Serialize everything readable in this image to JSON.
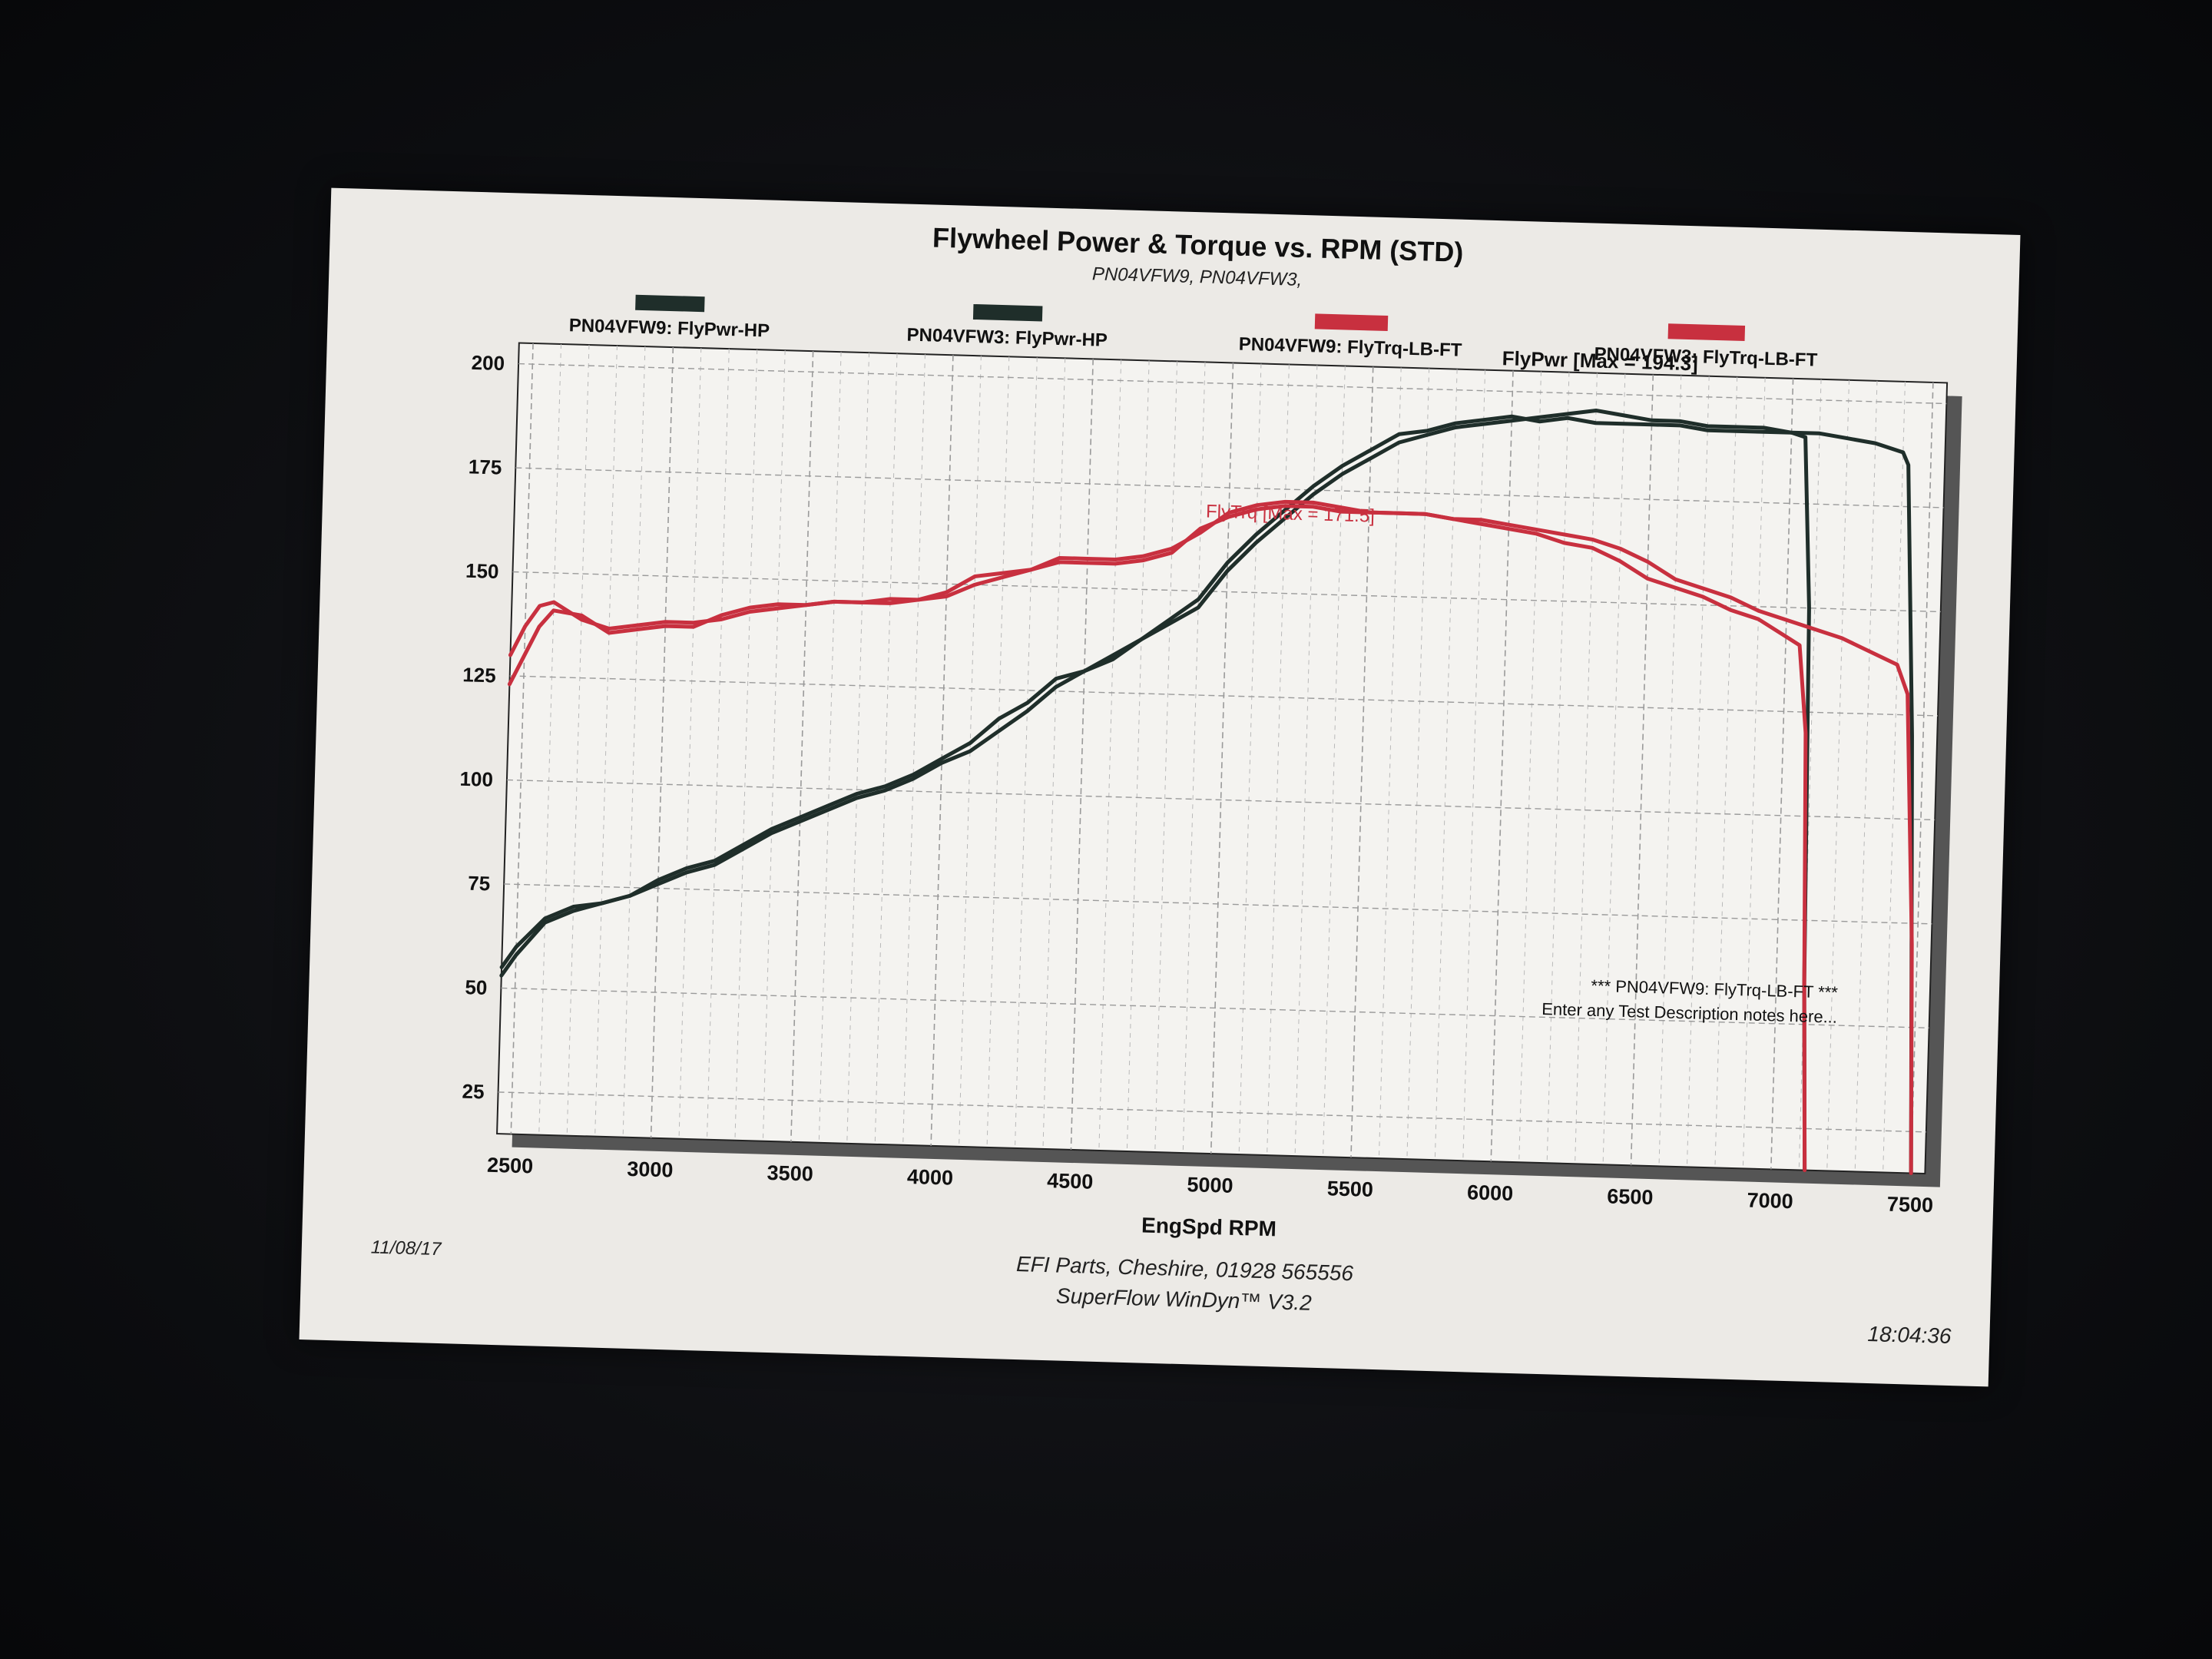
{
  "chart_data": {
    "type": "line",
    "title": "Flywheel Power & Torque vs. RPM (STD)",
    "subtitle": "PN04VFW9, PN04VFW3,",
    "xlabel": "EngSpd RPM",
    "xlim": [
      2450,
      7550
    ],
    "ylim": [
      15,
      205
    ],
    "x_ticks": [
      2500,
      3000,
      3500,
      4000,
      4500,
      5000,
      5500,
      6000,
      6500,
      7000,
      7500
    ],
    "y_ticks": [
      25,
      50,
      75,
      100,
      125,
      150,
      175,
      200
    ],
    "grid": true,
    "legend_position": "top",
    "series": [
      {
        "name": "PN04VFW9: FlyPwr-HP",
        "color": "#1f2e2a",
        "x": [
          2450,
          2500,
          2600,
          2700,
          2800,
          2900,
          3000,
          3100,
          3200,
          3300,
          3400,
          3500,
          3600,
          3700,
          3800,
          3900,
          4000,
          4100,
          4200,
          4300,
          4400,
          4500,
          4600,
          4700,
          4800,
          4900,
          5000,
          5100,
          5200,
          5300,
          5400,
          5500,
          5600,
          5700,
          5800,
          5900,
          6000,
          6100,
          6200,
          6300,
          6400,
          6500,
          6600,
          6700,
          6800,
          6900,
          7000,
          7050,
          7080,
          7100,
          7120
        ],
        "y": [
          55,
          60,
          67,
          70,
          71,
          73,
          77,
          80,
          82,
          86,
          90,
          93,
          96,
          99,
          101,
          104,
          108,
          112,
          118,
          122,
          128,
          130,
          133,
          138,
          143,
          148,
          157,
          164,
          170,
          176,
          181,
          185,
          189,
          190,
          192,
          193,
          194,
          193,
          194,
          193,
          193,
          193,
          193,
          192,
          192,
          192,
          192,
          191,
          150,
          60,
          15
        ]
      },
      {
        "name": "PN04VFW3: FlyPwr-HP",
        "color": "#1f2e2a",
        "x": [
          2450,
          2500,
          2600,
          2700,
          2800,
          2900,
          3000,
          3100,
          3200,
          3300,
          3400,
          3500,
          3600,
          3700,
          3800,
          3900,
          4000,
          4100,
          4200,
          4300,
          4400,
          4500,
          4600,
          4700,
          4800,
          4900,
          5000,
          5100,
          5200,
          5300,
          5400,
          5500,
          5600,
          5700,
          5800,
          5900,
          6000,
          6100,
          6200,
          6300,
          6400,
          6500,
          6600,
          6700,
          6800,
          6900,
          7000,
          7100,
          7200,
          7300,
          7400,
          7420,
          7460,
          7500
        ],
        "y": [
          53,
          58,
          66,
          69,
          71,
          73,
          76,
          79,
          81,
          85,
          89,
          92,
          95,
          98,
          100,
          103,
          107,
          110,
          115,
          120,
          126,
          130,
          134,
          138,
          142,
          146,
          155,
          162,
          168,
          174,
          179,
          183,
          187,
          189,
          191,
          192,
          193,
          194,
          195,
          196,
          195,
          194,
          194,
          193,
          193,
          193,
          192,
          192,
          191,
          190,
          188,
          185,
          120,
          15
        ]
      },
      {
        "name": "PN04VFW9: FlyTrq-LB-FT",
        "color": "#c8303f",
        "x": [
          2450,
          2500,
          2550,
          2600,
          2700,
          2800,
          2900,
          3000,
          3100,
          3200,
          3300,
          3400,
          3500,
          3600,
          3700,
          3800,
          3900,
          4000,
          4100,
          4200,
          4300,
          4400,
          4500,
          4600,
          4700,
          4800,
          4900,
          5000,
          5100,
          5200,
          5300,
          5400,
          5500,
          5600,
          5700,
          5800,
          5900,
          6000,
          6100,
          6200,
          6300,
          6400,
          6500,
          6600,
          6700,
          6800,
          6900,
          7000,
          7050,
          7080,
          7100,
          7120
        ],
        "y": [
          130,
          137,
          142,
          143,
          139,
          137,
          138,
          139,
          139,
          140,
          142,
          143,
          144,
          145,
          145,
          146,
          146,
          147,
          150,
          152,
          154,
          156,
          156,
          156,
          157,
          159,
          165,
          168,
          170,
          171,
          171,
          170,
          170,
          170,
          170,
          169,
          168,
          167,
          166,
          164,
          163,
          160,
          156,
          154,
          152,
          149,
          147,
          143,
          141,
          120,
          60,
          15
        ]
      },
      {
        "name": "PN04VFW3: FlyTrq-LB-FT",
        "color": "#c8303f",
        "x": [
          2450,
          2500,
          2550,
          2600,
          2700,
          2800,
          2900,
          3000,
          3100,
          3200,
          3300,
          3400,
          3500,
          3600,
          3700,
          3800,
          3900,
          4000,
          4100,
          4200,
          4300,
          4400,
          4500,
          4600,
          4700,
          4800,
          4900,
          5000,
          5100,
          5200,
          5300,
          5400,
          5500,
          5600,
          5700,
          5800,
          5900,
          6000,
          6100,
          6200,
          6300,
          6400,
          6500,
          6600,
          6700,
          6800,
          6900,
          7000,
          7100,
          7200,
          7300,
          7400,
          7440,
          7480,
          7500
        ],
        "y": [
          123,
          130,
          137,
          141,
          140,
          136,
          137,
          138,
          138,
          141,
          143,
          144,
          144,
          145,
          145,
          145,
          146,
          148,
          152,
          153,
          154,
          157,
          157,
          157,
          158,
          160,
          164,
          169,
          171,
          172,
          172,
          171,
          170,
          170,
          170,
          169,
          169,
          168,
          167,
          166,
          165,
          163,
          160,
          156,
          154,
          152,
          149,
          147,
          145,
          143,
          140,
          137,
          130,
          70,
          15
        ]
      }
    ],
    "annotations": [
      {
        "text": "FlyPwr [Max = 194.3]",
        "color": "#111111"
      },
      {
        "text": "FlyTrq [Max = 171.5]",
        "color": "#c8303f"
      },
      {
        "text": "*** PN04VFW9: FlyTrq-LB-FT ***",
        "color": "#111111"
      },
      {
        "text": "Enter any Test Description notes here...",
        "color": "#111111"
      }
    ]
  },
  "footer": {
    "date": "11/08/17",
    "company": "EFI Parts, Cheshire, 01928 565556",
    "software": "SuperFlow WinDyn™ V3.2",
    "time": "18:04:36"
  },
  "colors": {
    "power": "#1f2e2a",
    "torque": "#c8303f",
    "paper": "#eceae6",
    "frame_shadow": "#555555"
  }
}
